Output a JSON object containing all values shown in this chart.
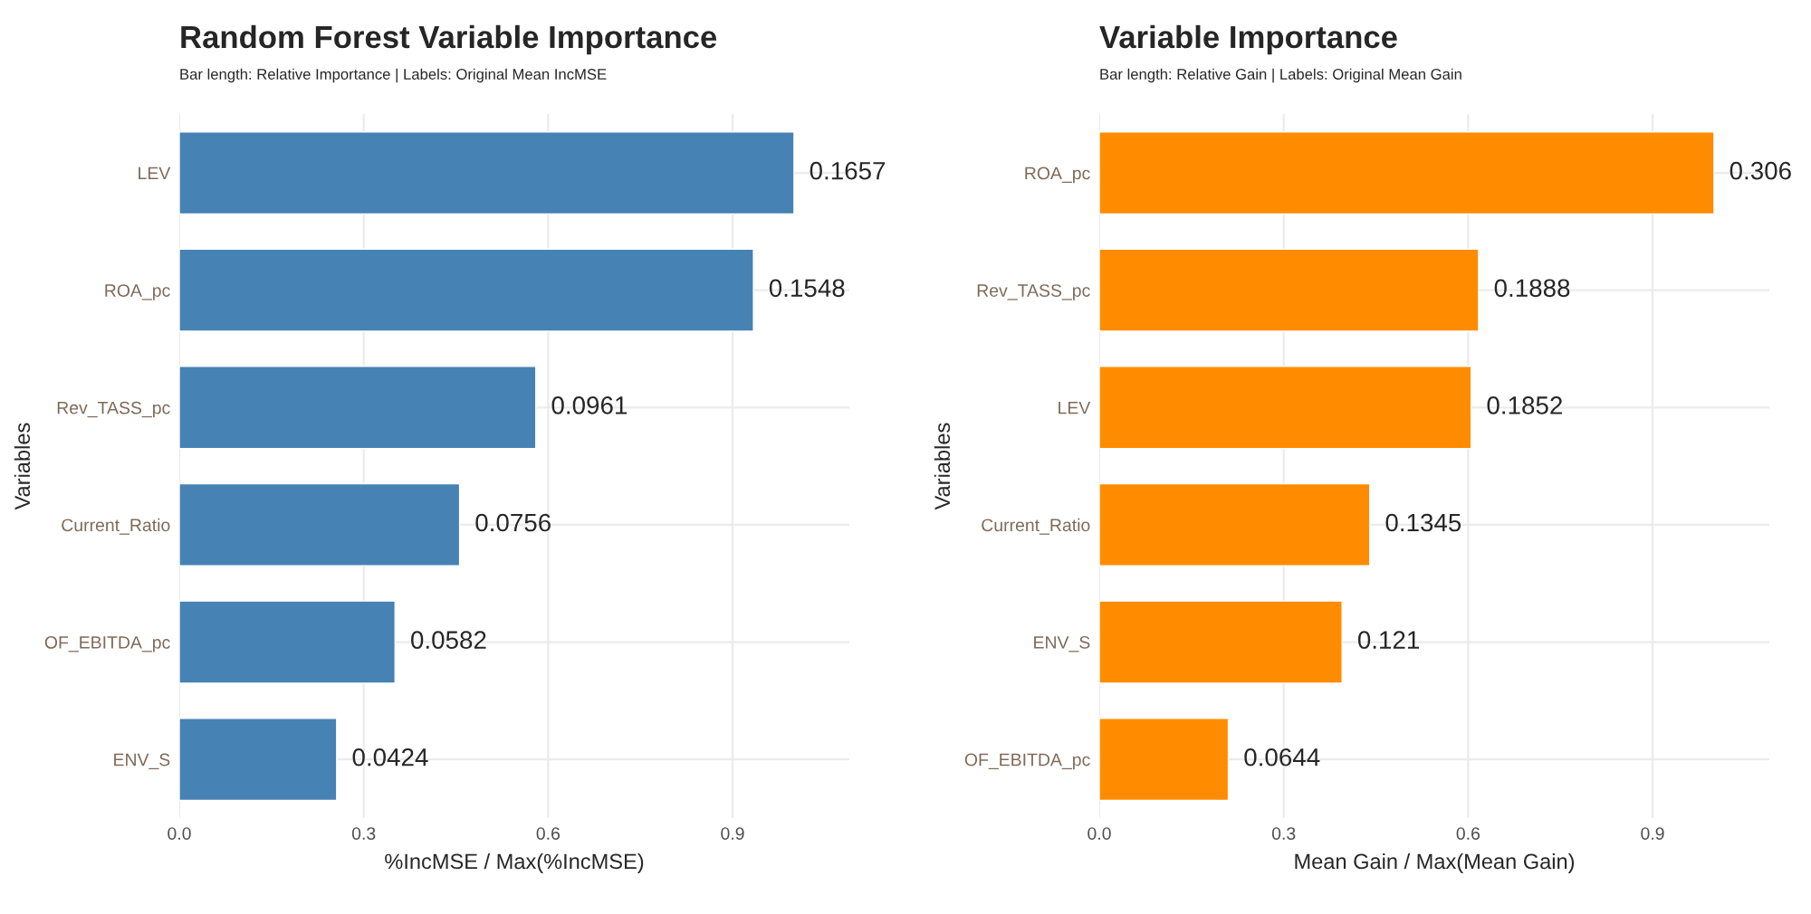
{
  "chart_data": [
    {
      "type": "bar",
      "orientation": "horizontal",
      "title": "Random Forest Variable Importance",
      "subtitle": "Bar length: Relative Importance | Labels: Original Mean IncMSE",
      "xlabel": "%IncMSE / Max(%IncMSE)",
      "ylabel": "Variables",
      "categories": [
        "LEV",
        "ROA_pc",
        "Rev_TASS_pc",
        "Current_Ratio",
        "OF_EBITDA_pc",
        "ENV_S"
      ],
      "values": [
        1.0,
        0.934,
        0.58,
        0.456,
        0.351,
        0.256
      ],
      "annotations": [
        {
          "text": "0.1657",
          "x": 1.0,
          "y": "LEV"
        },
        {
          "text": "0.1548",
          "x": 0.934,
          "y": "ROA_pc"
        },
        {
          "text": "0.0961",
          "x": 0.58,
          "y": "Rev_TASS_pc"
        },
        {
          "text": "0.0756",
          "x": 0.456,
          "y": "Current_Ratio"
        },
        {
          "text": "0.0582",
          "x": 0.351,
          "y": "OF_EBITDA_pc"
        },
        {
          "text": "0.0424",
          "x": 0.256,
          "y": "ENV_S"
        }
      ],
      "color": "#4682b4",
      "xlim": [
        0,
        1.09
      ],
      "xticks": [
        {
          "value": 0,
          "label": "0.0"
        },
        0.3,
        0.6,
        0.9
      ],
      "grid": true
    },
    {
      "type": "bar",
      "orientation": "horizontal",
      "title": "Variable Importance",
      "subtitle": "Bar length: Relative Gain | Labels: Original Mean Gain",
      "xlabel": "Mean Gain / Max(Mean Gain)",
      "ylabel": "Variables",
      "categories": [
        "ROA_pc",
        "Rev_TASS_pc",
        "LEV",
        "Current_Ratio",
        "ENV_S",
        "OF_EBITDA_pc"
      ],
      "values": [
        1.0,
        0.617,
        0.605,
        0.44,
        0.395,
        0.21
      ],
      "annotations": [
        {
          "text": "0.306",
          "x": 1.0,
          "y": "ROA_pc"
        },
        {
          "text": "0.1888",
          "x": 0.617,
          "y": "Rev_TASS_pc"
        },
        {
          "text": "0.1852",
          "x": 0.605,
          "y": "LEV"
        },
        {
          "text": "0.1345",
          "x": 0.44,
          "y": "Current_Ratio"
        },
        {
          "text": "0.121",
          "x": 0.395,
          "y": "ENV_S"
        },
        {
          "text": "0.0644",
          "x": 0.21,
          "y": "OF_EBITDA_pc"
        }
      ],
      "color": "#ff8c00",
      "xlim": [
        0,
        1.09
      ],
      "xticks": [
        {
          "value": 0,
          "label": "0.0"
        },
        0.3,
        0.6,
        0.9
      ],
      "grid": true
    }
  ]
}
